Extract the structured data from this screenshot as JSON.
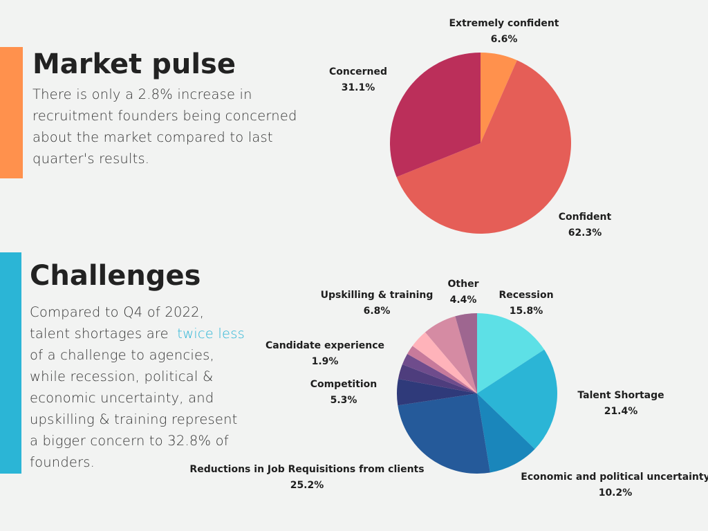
{
  "sections": [
    {
      "title": "Market pulse",
      "text": [
        "There is only a 2.8% increase in",
        "recruitment founders being concerned",
        "about the market compared to last",
        "quarter's results."
      ]
    },
    {
      "title": "Challenges",
      "text_lines": [
        "Compared to Q4 of 2022,"
      ],
      "highlight_before": "talent shortages are ",
      "highlight": "twice less",
      "text_after": [
        "of a challenge to agencies,",
        "while recession, political &",
        "economic uncertainty, and",
        "upskilling & training represent",
        "a bigger concern to 32.8% of",
        "founders."
      ]
    }
  ],
  "chart_data": [
    {
      "type": "pie",
      "categories": [
        "Extremely confident",
        "Confident",
        "Concerned"
      ],
      "values": [
        6.6,
        62.3,
        31.1
      ],
      "value_labels": [
        "6.6%",
        "62.3%",
        "31.1%"
      ],
      "colors": [
        "#ff914d",
        "#e55e57",
        "#bb2f5a"
      ]
    },
    {
      "type": "pie",
      "categories": [
        "Recession",
        "Talent Shortage",
        "Economic and political uncertainty",
        "Reductions in Job Requisitions from clients",
        "Competition",
        null,
        null,
        "Candidate experience",
        null,
        "Upskilling & training",
        "Other"
      ],
      "values": [
        15.8,
        21.4,
        10.2,
        25.2,
        5.3,
        3.0,
        2.3,
        1.9,
        3.7,
        6.8,
        4.4
      ],
      "value_labels": [
        "15.8%",
        "21.4%",
        "10.2%",
        "25.2%",
        "5.3%",
        null,
        null,
        "1.9%",
        null,
        "6.8%",
        "4.4%"
      ],
      "colors": [
        "#5de0e6",
        "#2bb5d6",
        "#1a86bb",
        "#255a9a",
        "#2f3a7a",
        "#4e3d7d",
        "#6f4c8c",
        "#c77a9b",
        "#ffb3ba",
        "#d58ba3",
        "#9e6690"
      ]
    }
  ]
}
